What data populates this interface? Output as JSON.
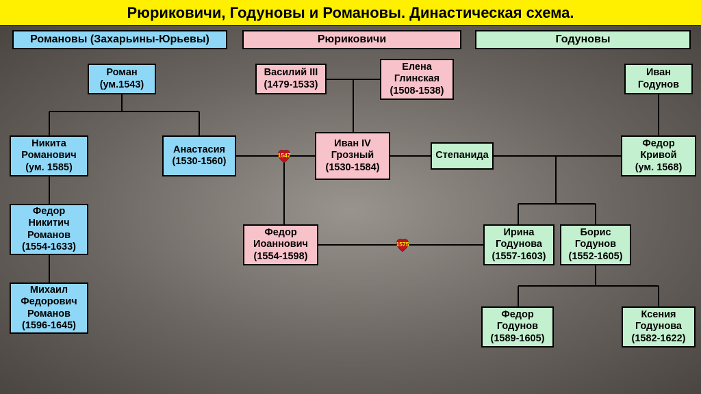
{
  "title": "Рюриковичи, Годуновы и Романовы. Династическая схема.",
  "colors": {
    "title_bg": "#fff000",
    "romanov": "#8fd7f7",
    "rurik": "#f7c2c9",
    "godunov": "#c3f0cf",
    "border": "#000000"
  },
  "headers": {
    "romanov": "Романовы (Захарьины-Юрьевы)",
    "rurik": "Рюриковичи",
    "godunov": "Годуновы"
  },
  "nodes": {
    "roman": "Роман\n(ум.1543)",
    "nikita": "Никита\nРоманович\n(ум. 1585)",
    "anastasia": "Анастасия\n(1530-1560)",
    "fedor_nikitich": "Федор\nНикитич\nРоманов\n(1554-1633)",
    "mikhail": "Михаил\nФедорович\nРоманов\n(1596-1645)",
    "vasily3": "Василий III\n(1479-1533)",
    "elena": "Елена\nГлинская\n(1508-1538)",
    "ivan4": "Иван IV\nГрозный\n(1530-1584)",
    "fedor_ioannovich": "Федор\nИоаннович\n(1554-1598)",
    "stepanida": "Степанида",
    "ivan_godunov": "Иван\nГодунов",
    "fedor_krivoy": "Федор\nКривой\n(ум. 1568)",
    "irina": "Ирина\nГодунова\n(1557-1603)",
    "boris": "Борис\nГодунов\n(1552-1605)",
    "fedor_godunov": "Федор\nГодунов\n(1589-1605)",
    "ksenia": "Ксения\nГодунова\n(1582-1622)"
  },
  "hearts": {
    "h1547": "1547",
    "h1575": "1575"
  }
}
